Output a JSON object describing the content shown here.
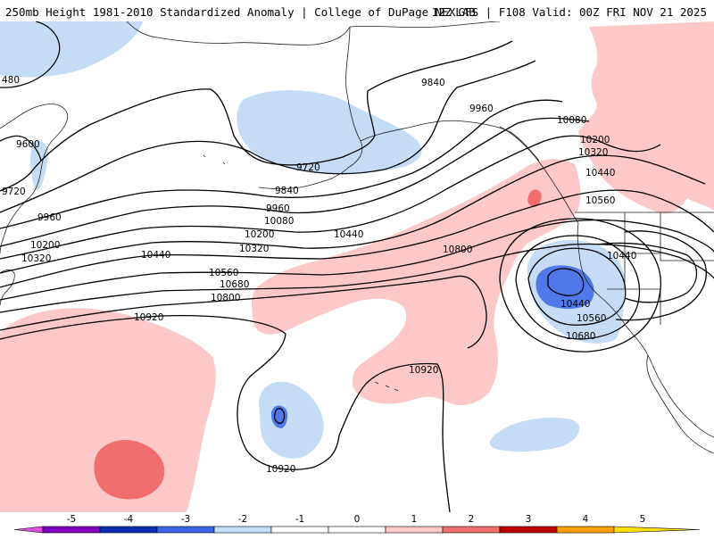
{
  "header": {
    "title_left": "250mb Height 1981-2010 Standardized Anomaly | College of DuPage NEXLAB",
    "title_right": "12Z GFS | F108 Valid: 00Z FRI NOV 21 2025"
  },
  "contour_labels": {
    "c9480": "480",
    "c9600": "9600",
    "c9720a": "9720",
    "c9720b": "9720",
    "c9840a": "9840",
    "c9840b": "9840",
    "c9960a": "9960",
    "c9960b": "9960",
    "c9960c": "9960",
    "c10080a": "10080",
    "c10080b": "10080",
    "c10200a": "10200",
    "c10200b": "10200",
    "c10200c": "10200",
    "c10320a": "10320",
    "c10320b": "10320",
    "c10320c": "10320",
    "c10440a": "10440",
    "c10440b": "10440",
    "c10440c": "10440",
    "c10440d": "10440",
    "c10440e": "10440",
    "c10560a": "10560",
    "c10560b": "10560",
    "c10560c": "10560",
    "c10680a": "10680",
    "c10680b": "10680",
    "c10800a": "10800",
    "c10800b": "10800",
    "c10920a": "10920",
    "c10920b": "10920",
    "c10920c": "10920"
  },
  "colorbar": {
    "ticks": [
      "-5",
      "-4",
      "-3",
      "-2",
      "-1",
      "0",
      "1",
      "2",
      "3",
      "4",
      "5"
    ],
    "colors": [
      "#e050e0",
      "#8000c0",
      "#0a2fb0",
      "#3a66e6",
      "#c4dcf6",
      "#ffffff",
      "#ffffff",
      "#fcc8c8",
      "#f06e6e",
      "#c00000",
      "#ffa000",
      "#ffe000"
    ]
  },
  "anomaly_colors": {
    "light_blue": "#c4dcf6",
    "mid_blue": "#5078e8",
    "light_red": "#fcc8c8",
    "mid_red": "#f06e6e"
  }
}
